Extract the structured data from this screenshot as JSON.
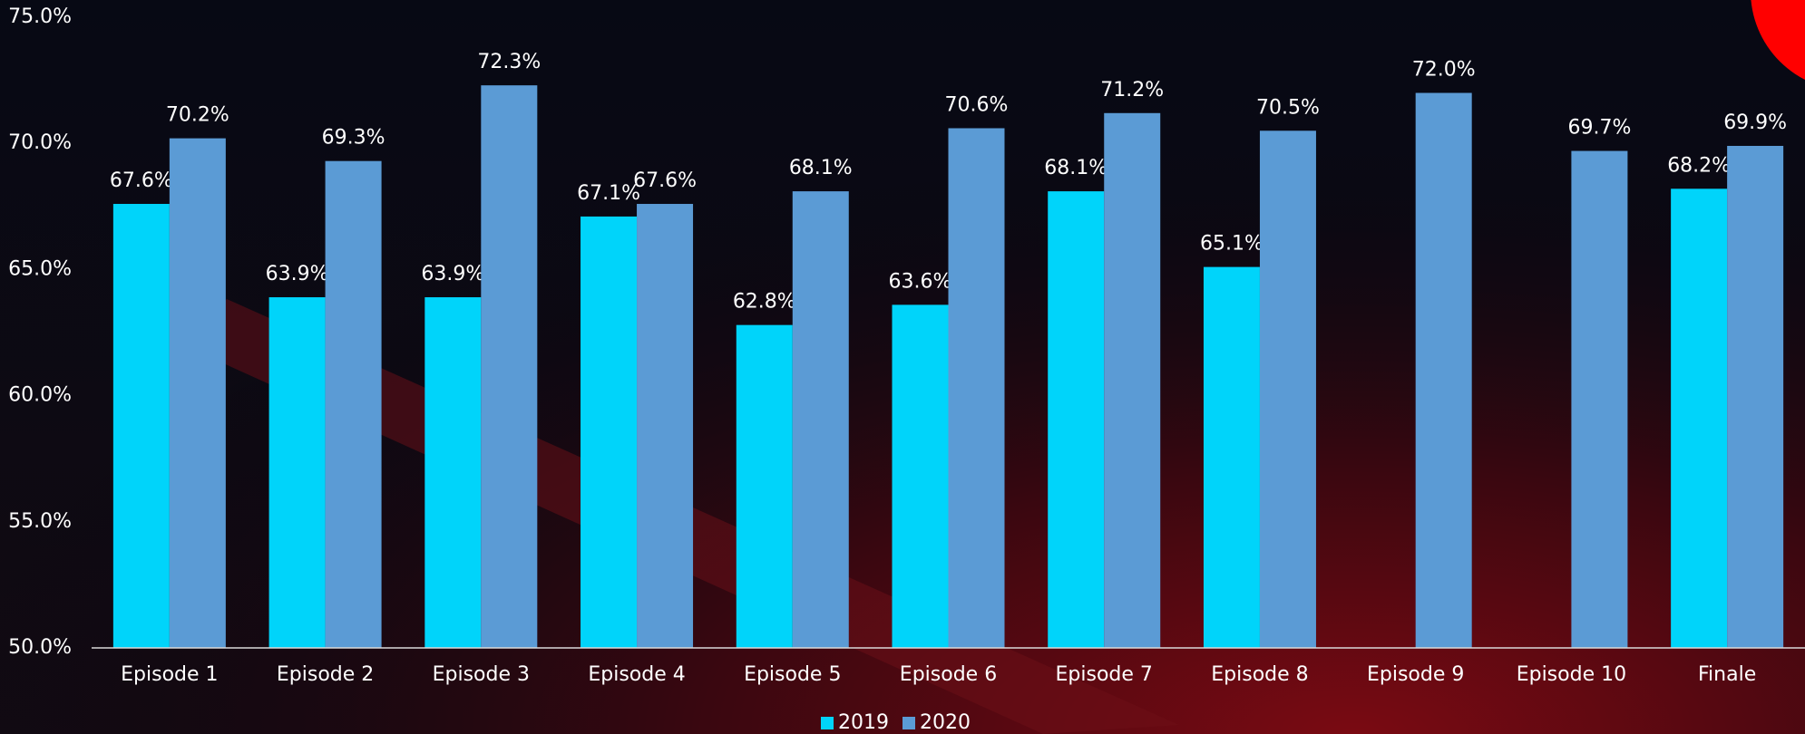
{
  "chart_data": {
    "type": "bar",
    "categories": [
      "Episode 1",
      "Episode 2",
      "Episode 3",
      "Episode 4",
      "Episode 5",
      "Episode 6",
      "Episode 7",
      "Episode 8",
      "Episode 9",
      "Episode 10",
      "Finale"
    ],
    "series": [
      {
        "name": "2019",
        "color": "#00d4fa",
        "values": [
          67.6,
          63.9,
          63.9,
          67.1,
          62.8,
          63.6,
          68.1,
          65.1,
          null,
          null,
          68.2
        ],
        "value_labels": [
          "67.6%",
          "63.9%",
          "63.9%",
          "67.1%",
          "62.8%",
          "63.6%",
          "68.1%",
          "65.1%",
          null,
          null,
          "68.2%"
        ]
      },
      {
        "name": "2020",
        "color": "#5b9bd5",
        "values": [
          70.2,
          69.3,
          72.3,
          67.6,
          68.1,
          70.6,
          71.2,
          70.5,
          72.0,
          69.7,
          69.9
        ],
        "value_labels": [
          "70.2%",
          "69.3%",
          "72.3%",
          "67.6%",
          "68.1%",
          "70.6%",
          "71.2%",
          "70.5%",
          "72.0%",
          "69.7%",
          "69.9%"
        ]
      }
    ],
    "ylim": [
      50,
      75
    ],
    "yticks": [
      {
        "value": 50,
        "label": "50.0%"
      },
      {
        "value": 55,
        "label": "55.0%"
      },
      {
        "value": 60,
        "label": "60.0%"
      },
      {
        "value": 65,
        "label": "65.0%"
      },
      {
        "value": 70,
        "label": "70.0%"
      },
      {
        "value": 75,
        "label": "75.0%"
      }
    ],
    "legend": "bottom"
  }
}
